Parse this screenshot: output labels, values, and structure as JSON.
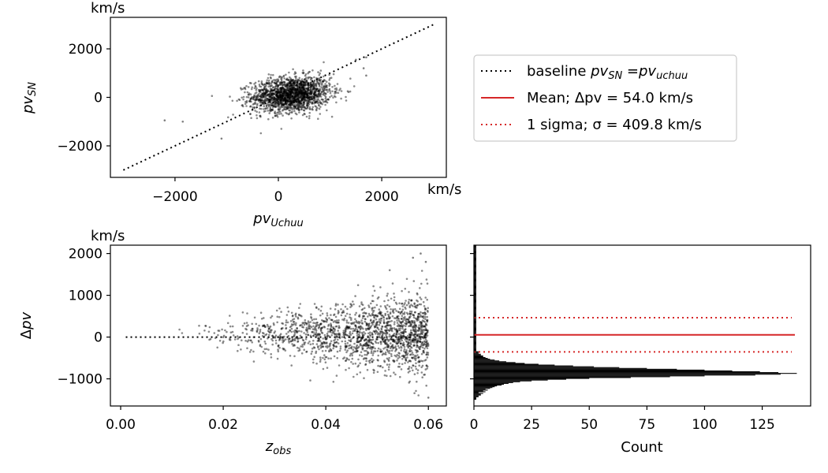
{
  "chart_data": [
    {
      "type": "scatter",
      "panel": "top-left",
      "xlabel": "pv_Uchuu",
      "ylabel": "pv_SN",
      "x_unit": "km/s",
      "y_unit": "km/s",
      "xlim": [
        -3250,
        3250
      ],
      "ylim": [
        -3300,
        3300
      ],
      "x_ticks": [
        "−2000",
        "0",
        "2000"
      ],
      "y_ticks": [
        "−2000",
        "0",
        "2000"
      ],
      "baseline": {
        "x": [
          -3000,
          3000
        ],
        "y": [
          -3000,
          3000
        ],
        "style": "dotted",
        "color": "#000000"
      },
      "series": [
        {
          "n_points": 1800,
          "color": "#000000",
          "x_center": 250,
          "y_center": 120,
          "x_spread": 380,
          "y_spread": 360,
          "outliers": [
            [
              -2200,
              -950
            ],
            [
              -1850,
              -1000
            ],
            [
              1700,
              1650
            ],
            [
              1650,
              1200
            ],
            [
              1500,
              1550
            ],
            [
              1700,
              900
            ],
            [
              -1100,
              -1700
            ]
          ]
        }
      ]
    },
    {
      "type": "scatter",
      "panel": "bottom-left",
      "xlabel": "z_obs",
      "ylabel": "Δpv",
      "y_unit": "km/s",
      "xlim": [
        -0.002,
        0.0635
      ],
      "ylim": [
        -1650,
        2200
      ],
      "x_ticks": [
        "0.00",
        "0.02",
        "0.04",
        "0.06"
      ],
      "y_ticks": [
        "−1000",
        "0",
        "1000",
        "2000"
      ],
      "baseline": {
        "x": [
          0.001,
          0.06
        ],
        "y": [
          0,
          0
        ],
        "style": "dotted",
        "color": "#000000"
      },
      "series": [
        {
          "n_points": 1800,
          "color": "#000000",
          "x_range": [
            0.006,
            0.06
          ],
          "mean": 54.0,
          "outliers": [
            [
              0.0585,
              2000
            ],
            [
              0.0595,
              1800
            ],
            [
              0.057,
              1900
            ],
            [
              0.06,
              -1450
            ]
          ]
        }
      ]
    },
    {
      "type": "bar",
      "orientation": "horizontal",
      "panel": "bottom-right",
      "xlabel": "Count",
      "xlim": [
        0,
        146
      ],
      "x_ticks": [
        "0",
        "25",
        "50",
        "75",
        "100",
        "125"
      ],
      "bin_edges_start": -1500,
      "bin_width": 20,
      "values": [
        1,
        1,
        1,
        2,
        2,
        3,
        3,
        4,
        2,
        5,
        4,
        6,
        5,
        7,
        8,
        9,
        10,
        12,
        13,
        15,
        17,
        20,
        25,
        32,
        40,
        50,
        68,
        85,
        100,
        122,
        133,
        140,
        132,
        124,
        112,
        100,
        88,
        75,
        63,
        52,
        43,
        35,
        28,
        22,
        18,
        14,
        11,
        9,
        7,
        6,
        5,
        4,
        4,
        3,
        3,
        2,
        2,
        2,
        1,
        1,
        1,
        1,
        1,
        1,
        1,
        1,
        1,
        1,
        1,
        1,
        1,
        1,
        1,
        1,
        1,
        1,
        1,
        1,
        1,
        1,
        1,
        1,
        1,
        1,
        1,
        1,
        1,
        1,
        1,
        1,
        1,
        1,
        1,
        1,
        1,
        1,
        1,
        1,
        1,
        1,
        1,
        1,
        1,
        1,
        1,
        1,
        1,
        1,
        1,
        1,
        1,
        1,
        1,
        1,
        1,
        1,
        1,
        1,
        1,
        1,
        1,
        1,
        1,
        1,
        1,
        1,
        1,
        1,
        1,
        1,
        1,
        1,
        1,
        1,
        1,
        1,
        1,
        1,
        1,
        1,
        1,
        1,
        1,
        1,
        1,
        1,
        1,
        1,
        1,
        1,
        1,
        1,
        1,
        1,
        1,
        1,
        1,
        1,
        1,
        1,
        1,
        1,
        1,
        1,
        1,
        1,
        1,
        1,
        1,
        1,
        1,
        1,
        1,
        1,
        1,
        1,
        1,
        1,
        1,
        1,
        1,
        1,
        1,
        1,
        1,
        1,
        1,
        1,
        1,
        1,
        1,
        1
      ],
      "mean_line": {
        "value": 54.0,
        "color": "#d62728"
      },
      "sigma_lines": {
        "values": [
          463.8,
          -355.8
        ],
        "color": "#d62728",
        "style": "dotted"
      }
    }
  ],
  "legend": {
    "placement": "right of top-left panel",
    "items": [
      {
        "style": "dotted",
        "color": "#000000",
        "label_text": "baseline ",
        "label_math": "pv_SN = pv_uchuu"
      },
      {
        "style": "solid",
        "color": "#d62728",
        "label_text": "Mean; Δpv =  54.0 km/s"
      },
      {
        "style": "dotted",
        "color": "#d62728",
        "label_text": "1 sigma; σ =  409.8 km/s"
      }
    ]
  },
  "labels": {
    "top_y_unit": "km/s",
    "top_x_unit": "km/s",
    "bottom_y_unit": "km/s"
  }
}
